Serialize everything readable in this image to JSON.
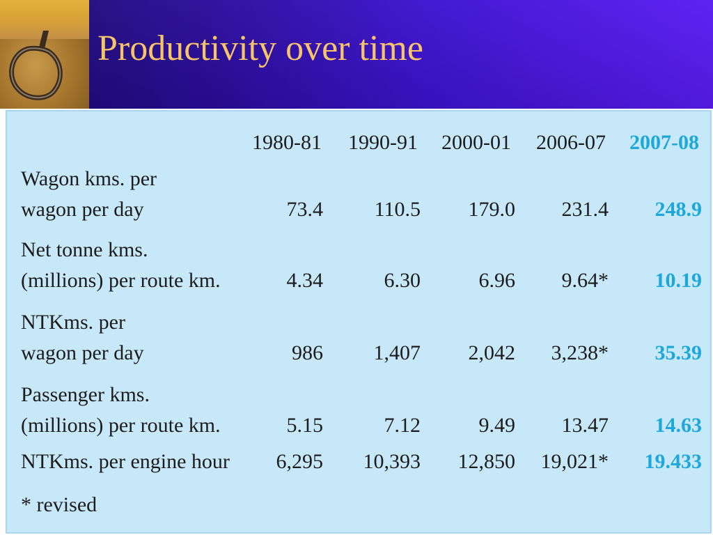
{
  "slide": {
    "title": "Productivity over time",
    "colors": {
      "header_start": "#1a0a6e",
      "header_end": "#5a1cf2",
      "title": "#f8c46a",
      "panel": "#c7e8f8",
      "highlight": "#1da7da"
    },
    "corner_icon": "rope-loop-icon"
  },
  "table": {
    "columns": [
      "1980-81",
      "1990-91",
      "2000-01",
      "2006-07",
      "2007-08"
    ],
    "highlight_column": "2007-08",
    "rows": [
      {
        "label_lines": [
          "Wagon kms. per",
          "wagon per day"
        ],
        "values": [
          "73.4",
          "110.5",
          "179.0",
          "231.4",
          "248.9"
        ]
      },
      {
        "label_lines": [
          "Net tonne kms.",
          "(millions) per route km."
        ],
        "values": [
          "4.34",
          "6.30",
          "6.96",
          "9.64*",
          "10.19"
        ]
      },
      {
        "label_lines": [
          "NTKms. per",
          "wagon per day"
        ],
        "values": [
          "986",
          "1,407",
          "2,042",
          "3,238*",
          "35.39"
        ]
      },
      {
        "label_lines": [
          "Passenger kms.",
          "(millions) per route km."
        ],
        "values": [
          "5.15",
          "7.12",
          "9.49",
          "13.47",
          "14.63"
        ]
      },
      {
        "label_lines": [
          "NTKms. per engine hour"
        ],
        "values": [
          "6,295",
          "10,393",
          "12,850",
          "19,021*",
          "19.433"
        ]
      }
    ],
    "footnote": "* revised"
  }
}
